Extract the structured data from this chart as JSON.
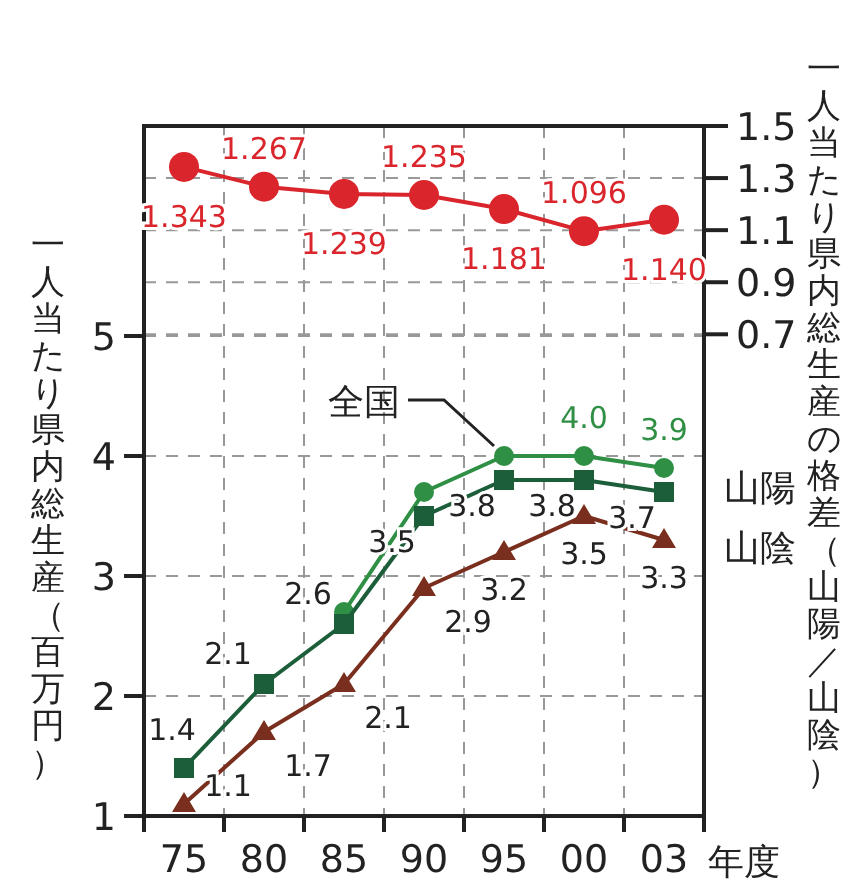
{
  "chart_data": {
    "type": "line",
    "xlabel": "年度",
    "ylabel": "一人当たり県内総生産（百万円）",
    "y2label": "一人当たり県内総生産の格差（山陽／山陰）",
    "categories": [
      "75",
      "80",
      "85",
      "90",
      "95",
      "00",
      "03"
    ],
    "ylim": [
      1,
      6.75
    ],
    "yticks": [
      1,
      2,
      3,
      4,
      5
    ],
    "y2lim": [
      -1.15,
      1.5
    ],
    "y2ticks": [
      0.7,
      0.9,
      1.1,
      1.3,
      1.5
    ],
    "grid": true,
    "series": [
      {
        "color": "#d9252b",
        "axis": "y2",
        "marker": "circle",
        "values": [
          1.343,
          1.267,
          1.239,
          1.235,
          1.181,
          1.096,
          1.14
        ],
        "value_labels": [
          "1.343",
          "1.267",
          "1.239",
          "1.235",
          "1.181",
          "1.096",
          "1.140"
        ]
      },
      {
        "name": "山陰",
        "color": "#7a2e1e",
        "marker": "triangle",
        "values": [
          1.1,
          1.7,
          2.1,
          2.9,
          3.2,
          3.5,
          3.3
        ],
        "value_labels": [
          "1.1",
          "1.7",
          "2.1",
          "2.9",
          "3.2",
          "3.5",
          "3.3"
        ]
      },
      {
        "name": "全国",
        "color": "#2f8f45",
        "marker": "circle",
        "values": [
          null,
          null,
          2.7,
          3.7,
          4.0,
          4.0,
          3.9
        ],
        "value_labels": [
          null,
          null,
          null,
          null,
          null,
          "4.0",
          "3.9"
        ]
      },
      {
        "name": "山陽",
        "color": "#1d5e3a",
        "marker": "square",
        "values": [
          1.4,
          2.1,
          2.6,
          3.5,
          3.8,
          3.8,
          3.7
        ],
        "value_labels": [
          "1.4",
          "2.1",
          "2.6",
          "3.5",
          "3.8",
          "3.8",
          "3.7"
        ]
      }
    ]
  }
}
